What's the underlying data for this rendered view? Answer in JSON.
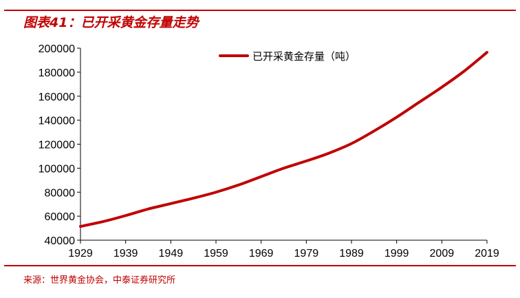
{
  "header": {
    "title": "图表41：已开采黄金存量走势"
  },
  "footer": {
    "source": "来源：世界黄金协会，中泰证券研究所"
  },
  "colors": {
    "accent": "#c00000",
    "series": "#c00000",
    "axis": "#000000"
  },
  "chart_data": {
    "type": "line",
    "title": "图表41：已开采黄金存量走势",
    "xlabel": "",
    "ylabel": "",
    "xlim": [
      1929,
      2019
    ],
    "ylim": [
      40000,
      200000
    ],
    "y_ticks": [
      40000,
      60000,
      80000,
      100000,
      120000,
      140000,
      160000,
      180000,
      200000
    ],
    "y_tick_labels": [
      "40000",
      "60000",
      "80000",
      "100000",
      "120000",
      "140000",
      "160000",
      "180000",
      "200000"
    ],
    "x_ticks": [
      1929,
      1939,
      1949,
      1959,
      1969,
      1979,
      1989,
      1999,
      2009,
      2019
    ],
    "x_tick_labels": [
      "1929",
      "1939",
      "1949",
      "1959",
      "1969",
      "1979",
      "1989",
      "1999",
      "2009",
      "2019"
    ],
    "grid": false,
    "legend_position": "top-center",
    "series": [
      {
        "name": "已开采黄金存量（吨）",
        "x": [
          1929,
          1934,
          1939,
          1944,
          1949,
          1954,
          1959,
          1964,
          1969,
          1974,
          1979,
          1984,
          1989,
          1994,
          1999,
          2004,
          2009,
          2014,
          2019
        ],
        "values": [
          51500,
          55500,
          60500,
          66000,
          70500,
          75000,
          80000,
          86000,
          93000,
          100000,
          106000,
          112500,
          120500,
          131000,
          142500,
          155000,
          167500,
          181000,
          196500
        ]
      }
    ]
  }
}
